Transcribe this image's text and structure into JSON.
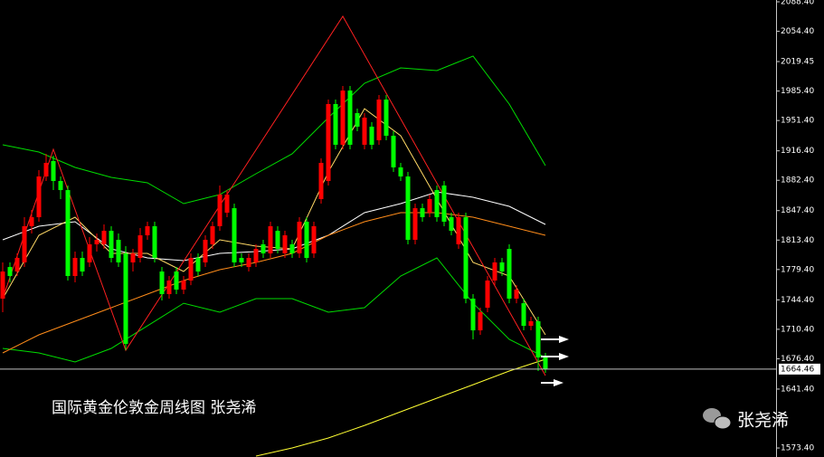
{
  "chart_data": {
    "type": "candlestick",
    "title": "国际黄金伦敦金周线图 张尧浠",
    "watermark": "张尧浠",
    "last_price": 1664.46,
    "up_color": "#ff0000",
    "down_color": "#00ff00",
    "ylim": [
      1563,
      2090.5
    ],
    "yticks": [
      {
        "value": 2088.4,
        "label": "2088.40"
      },
      {
        "value": 2054.4,
        "label": "2054.40"
      },
      {
        "value": 2019.45,
        "label": "2019.45"
      },
      {
        "value": 1985.4,
        "label": "1985.40"
      },
      {
        "value": 1951.4,
        "label": "1951.40"
      },
      {
        "value": 1916.4,
        "label": "1916.40"
      },
      {
        "value": 1882.4,
        "label": "1882.40"
      },
      {
        "value": 1847.4,
        "label": "1847.40"
      },
      {
        "value": 1813.4,
        "label": "1813.40"
      },
      {
        "value": 1779.4,
        "label": "1779.40"
      },
      {
        "value": 1744.4,
        "label": "1744.40"
      },
      {
        "value": 1710.4,
        "label": "1710.40"
      },
      {
        "value": 1676.4,
        "label": "1676.40"
      },
      {
        "value": 1641.4,
        "label": "1641.40"
      },
      {
        "value": 1573.4,
        "label": "1573.40"
      }
    ],
    "open": [
      1745.8,
      1782.3,
      1777.1,
      1787.6,
      1829.4,
      1839.8,
      1886.8,
      1904.6,
      1881.6,
      1871.1,
      1771.9,
      1792.8,
      1787.6,
      1808.5,
      1808.5,
      1824.1,
      1813.7,
      1798.0,
      1787.6,
      1792.8,
      1818.9,
      1829.4,
      1777.1,
      1751.0,
      1777.1,
      1756.2,
      1766.7,
      1792.8,
      1787.6,
      1808.5,
      1829.4,
      1845.0,
      1850.2,
      1792.8,
      1782.3,
      1787.6,
      1808.5,
      1798.0,
      1824.1,
      1798.0,
      1808.5,
      1798.0,
      1834.6,
      1798.0,
      1860.7,
      1881.6,
      1970.4,
      1923.4,
      1986.0,
      1959.9,
      1923.4,
      1944.3,
      1928.6,
      1975.6,
      1933.8,
      1897.3,
      1886.8,
      1813.7,
      1850.2,
      1845.0,
      1871.1,
      1876.4,
      1839.8,
      1808.5,
      1839.8,
      1745.8,
      1709.2,
      1735.3,
      1766.7,
      1787.6,
      1803.2,
      1745.8,
      1740.5,
      1714.4,
      1719.7,
      1677.9
    ],
    "close": [
      1777.1,
      1771.9,
      1792.8,
      1829.4,
      1839.8,
      1886.8,
      1902.5,
      1881.6,
      1871.1,
      1771.9,
      1792.8,
      1777.1,
      1808.5,
      1813.7,
      1824.1,
      1792.8,
      1787.6,
      1693.6,
      1798.0,
      1818.9,
      1829.4,
      1792.8,
      1751.0,
      1766.7,
      1756.2,
      1766.7,
      1792.8,
      1777.1,
      1813.7,
      1829.4,
      1865.9,
      1865.9,
      1787.6,
      1787.6,
      1792.8,
      1803.2,
      1798.0,
      1829.4,
      1803.2,
      1818.9,
      1798.0,
      1834.6,
      1792.8,
      1829.4,
      1902.5,
      1970.4,
      1923.4,
      1986.0,
      1923.4,
      1944.3,
      1954.7,
      1923.4,
      1975.6,
      1933.8,
      1897.3,
      1886.8,
      1813.7,
      1850.2,
      1839.8,
      1860.7,
      1839.8,
      1834.6,
      1824.1,
      1839.8,
      1745.8,
      1709.2,
      1730.1,
      1766.7,
      1787.6,
      1777.1,
      1745.8,
      1756.2,
      1714.4,
      1719.7,
      1677.9,
      1664.46
    ],
    "high": [
      1787.6,
      1787.6,
      1798.0,
      1839.8,
      1848.2,
      1894.1,
      1912.9,
      1910.8,
      1886.8,
      1876.4,
      1800.1,
      1800.1,
      1816.8,
      1821.0,
      1831.4,
      1829.4,
      1821.0,
      1806.4,
      1803.2,
      1827.3,
      1834.6,
      1834.6,
      1782.3,
      1771.9,
      1782.3,
      1771.9,
      1798.0,
      1798.0,
      1818.9,
      1834.6,
      1876.4,
      1871.1,
      1855.5,
      1798.0,
      1798.0,
      1808.5,
      1813.7,
      1834.6,
      1829.4,
      1824.1,
      1813.7,
      1839.8,
      1839.8,
      1834.6,
      1907.7,
      1975.6,
      1975.6,
      1991.3,
      1991.3,
      1965.1,
      1959.9,
      1949.5,
      1980.8,
      1980.8,
      1939.0,
      1902.5,
      1892.0,
      1855.5,
      1855.5,
      1865.9,
      1876.4,
      1881.6,
      1845.0,
      1845.0,
      1845.0,
      1751.0,
      1735.3,
      1771.9,
      1792.8,
      1792.8,
      1808.5,
      1761.4,
      1745.8,
      1724.9,
      1724.9,
      1683.1
    ],
    "low": [
      1730.1,
      1764.6,
      1771.9,
      1782.3,
      1821.0,
      1834.6,
      1881.6,
      1871.1,
      1860.7,
      1766.7,
      1764.6,
      1771.9,
      1782.3,
      1800.1,
      1803.2,
      1787.6,
      1782.3,
      1686.2,
      1777.1,
      1787.6,
      1813.7,
      1787.6,
      1743.7,
      1745.8,
      1751.0,
      1751.0,
      1761.4,
      1771.9,
      1782.3,
      1803.2,
      1824.1,
      1839.8,
      1782.3,
      1782.3,
      1777.1,
      1782.3,
      1792.8,
      1792.8,
      1798.0,
      1792.8,
      1792.8,
      1792.8,
      1787.6,
      1792.8,
      1855.5,
      1876.4,
      1918.1,
      1918.1,
      1918.1,
      1939.0,
      1918.1,
      1918.1,
      1923.4,
      1928.6,
      1892.0,
      1881.6,
      1808.5,
      1808.5,
      1834.6,
      1839.8,
      1834.6,
      1829.4,
      1818.9,
      1803.2,
      1740.5,
      1698.8,
      1704.0,
      1730.1,
      1761.4,
      1771.9,
      1740.5,
      1740.5,
      1709.2,
      1709.2,
      1662.2,
      1660.1
    ],
    "overlay_x": [
      0,
      5,
      10,
      15,
      20,
      25,
      30,
      35,
      40,
      45,
      50,
      55,
      60,
      65,
      70,
      75
    ],
    "overlays": [
      {
        "color": "#00dd00",
        "values": [
          1923.4,
          1915.0,
          1897.3,
          1885.8,
          1879.5,
          1855.5,
          1865.9,
          1889.9,
          1912.9,
          1954.7,
          1994.4,
          2012.2,
          2009.0,
          2025.7,
          1970.4,
          1899.3
        ]
      },
      {
        "color": "#00dd00",
        "values": [
          1688.3,
          1683.1,
          1672.7,
          1688.3,
          1714.4,
          1740.5,
          1730.1,
          1745.8,
          1745.8,
          1730.1,
          1735.3,
          1771.9,
          1792.8,
          1740.5,
          1698.8,
          1677.9
        ]
      },
      {
        "color": "#ffffff",
        "values": [
          1813.7,
          1829.4,
          1834.6,
          1803.2,
          1792.8,
          1789.7,
          1798.0,
          1800.1,
          1803.2,
          1818.9,
          1845.0,
          1855.5,
          1869.0,
          1862.8,
          1852.3,
          1831.4
        ]
      },
      {
        "color": "#ff8c1a",
        "values": [
          1683.1,
          1704.0,
          1719.7,
          1735.3,
          1751.0,
          1766.7,
          1779.2,
          1787.6,
          1798.0,
          1818.9,
          1834.6,
          1845.0,
          1845.0,
          1839.8,
          1829.4,
          1818.9
        ]
      },
      {
        "color": "#ffd966",
        "values": [
          1745.8,
          1818.9,
          1839.8,
          1798.0,
          1798.0,
          1777.1,
          1813.7,
          1806.4,
          1803.2,
          1892.0,
          1965.1,
          1933.8,
          1860.7,
          1787.6,
          1771.9,
          1704.0
        ]
      },
      {
        "color": "#ffff33",
        "values": [
          null,
          null,
          null,
          null,
          null,
          null,
          null,
          1564.0,
          1573.4,
          1584.9,
          1599.5,
          1615.2,
          1630.9,
          1646.5,
          1662.2,
          1675.8
        ]
      }
    ],
    "zigzag": {
      "color": "#ff2020",
      "x": [
        0,
        7,
        17,
        47,
        75
      ],
      "values": [
        1745.8,
        1918.1,
        1686.2,
        2071.7,
        1657.0
      ]
    }
  }
}
